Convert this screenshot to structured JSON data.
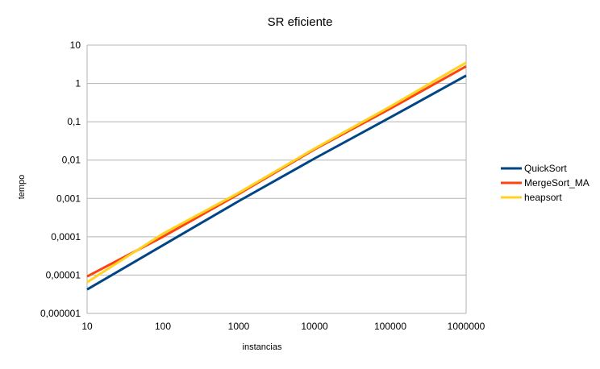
{
  "chart_data": {
    "type": "line",
    "title": "SR eficiente",
    "xlabel": "instancias",
    "ylabel": "tempo",
    "x_scale": "log",
    "y_scale": "log",
    "xlim": [
      10,
      1000000
    ],
    "ylim": [
      1e-06,
      10
    ],
    "grid": "horizontal",
    "legend_position": "right",
    "x_tick_labels": [
      "10",
      "100",
      "1000",
      "10000",
      "100000",
      "1000000"
    ],
    "y_tick_labels": [
      "10",
      "1",
      "0,1",
      "0,01",
      "0,001",
      "0,0001",
      "0,00001",
      "0,000001"
    ],
    "x": [
      10,
      100,
      1000,
      10000,
      100000,
      1000000
    ],
    "series": [
      {
        "name": "QuickSort",
        "color": "#004586",
        "values": [
          4.2e-06,
          6e-05,
          0.00085,
          0.011,
          0.13,
          1.6
        ]
      },
      {
        "name": "MergeSort_MA",
        "color": "#ff420e",
        "values": [
          9.2e-06,
          0.0001,
          0.0013,
          0.019,
          0.22,
          2.8
        ]
      },
      {
        "name": "heapsort",
        "color": "#ffd320",
        "values": [
          6.5e-06,
          0.00012,
          0.0014,
          0.02,
          0.25,
          3.5
        ]
      }
    ]
  }
}
